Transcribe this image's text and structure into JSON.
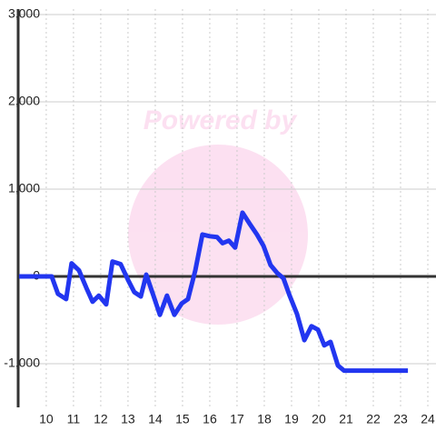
{
  "chart_data": {
    "type": "line",
    "watermark": "Powered by",
    "x": [
      9.0,
      10.2,
      10.43,
      10.73,
      10.93,
      11.2,
      11.47,
      11.7,
      11.93,
      12.2,
      12.43,
      12.73,
      13.0,
      13.23,
      13.47,
      13.67,
      13.9,
      14.17,
      14.43,
      14.7,
      14.97,
      15.2,
      15.47,
      15.73,
      16.0,
      16.27,
      16.47,
      16.7,
      16.93,
      17.2,
      17.47,
      17.73,
      17.97,
      18.23,
      18.47,
      18.7,
      18.93,
      19.2,
      19.47,
      19.73,
      19.97,
      20.2,
      20.43,
      20.7,
      20.93,
      23.27
    ],
    "series": [
      {
        "color": "#2236f0",
        "values": [
          0,
          0,
          -200,
          -260,
          150,
          70,
          -130,
          -290,
          -220,
          -320,
          170,
          140,
          -40,
          -180,
          -230,
          20,
          -190,
          -440,
          -220,
          -440,
          -310,
          -260,
          70,
          480,
          460,
          450,
          380,
          410,
          330,
          730,
          600,
          480,
          350,
          130,
          40,
          -20,
          -220,
          -430,
          -730,
          -570,
          -610,
          -790,
          -750,
          -1020,
          -1080,
          -1080
        ]
      }
    ],
    "xlim": [
      8.97,
      24.3
    ],
    "xticks": [
      10,
      11,
      12,
      13,
      14,
      15,
      16,
      17,
      18,
      19,
      20,
      21,
      22,
      23,
      24
    ],
    "ylim": [
      -1500,
      3062
    ],
    "yticks": [
      {
        "value": 3000,
        "label": "3,000"
      },
      {
        "value": 2000,
        "label": "2,000"
      },
      {
        "value": 1000,
        "label": "1,000"
      },
      0,
      {
        "value": -1000,
        "label": "-1,000"
      }
    ],
    "grid": true
  }
}
